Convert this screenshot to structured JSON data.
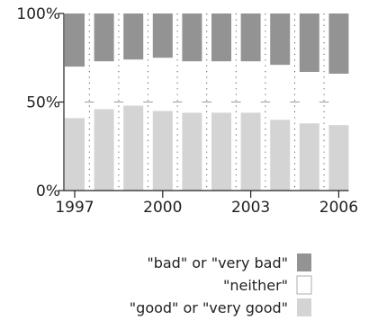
{
  "chart_data": {
    "type": "bar",
    "stacked": true,
    "normalized": true,
    "categories": [
      "1997",
      "1998",
      "1999",
      "2000",
      "2001",
      "2002",
      "2003",
      "2004",
      "2005",
      "2006"
    ],
    "x_tick_labels": [
      "1997",
      "2000",
      "2003",
      "2006"
    ],
    "y_tick_labels": [
      "0%",
      "50%",
      "100%"
    ],
    "ylim": [
      0,
      100
    ],
    "grid": true,
    "legend_position": "bottom-right",
    "series": [
      {
        "name": "\"good\" or \"very good\"",
        "color": "#d4d4d4",
        "values": [
          41,
          46,
          48,
          45,
          44,
          44,
          44,
          40,
          38,
          37
        ]
      },
      {
        "name": "\"neither\"",
        "color": "#ffffff",
        "values": [
          29,
          27,
          26,
          30,
          29,
          29,
          29,
          31,
          29,
          29
        ]
      },
      {
        "name": "\"bad\" or \"very bad\"",
        "color": "#939393",
        "values": [
          30,
          27,
          26,
          25,
          27,
          27,
          27,
          29,
          33,
          34
        ]
      }
    ]
  }
}
